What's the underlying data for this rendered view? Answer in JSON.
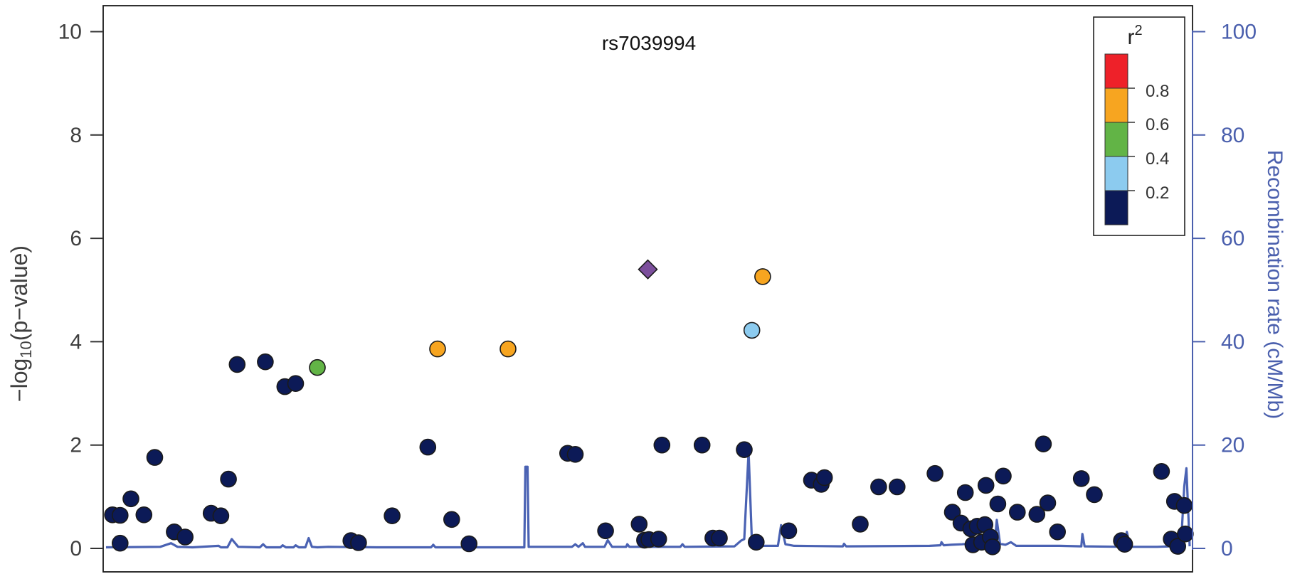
{
  "chart_data": {
    "type": "scatter",
    "title": "rs7039994",
    "ylabel_left": "−log10(p−value)",
    "ylabel_left_main": "−log",
    "ylabel_left_sub": "10",
    "ylabel_left_rest": "(p−value)",
    "ylabel_right": "Recombination rate (cM/Mb)",
    "ylim_left": [
      0,
      10.3
    ],
    "ylim_right": [
      0,
      103
    ],
    "ticks_left": [
      0,
      2,
      4,
      6,
      8,
      10
    ],
    "ticks_right": [
      0,
      20,
      40,
      60,
      80,
      100
    ],
    "xlim": [
      0,
      100
    ],
    "legend": {
      "title": "r",
      "title_sup": "2",
      "placement": "top-right",
      "bins": [
        {
          "color": "#ee2129"
        },
        {
          "color": "#f7a520"
        },
        {
          "color": "#62b446"
        },
        {
          "color": "#8ccbef"
        },
        {
          "color": "#0c1a57"
        }
      ],
      "labels": [
        "0.8",
        "0.6",
        "0.4",
        "0.2"
      ]
    },
    "lead_snp": {
      "x": 50.0,
      "y": 5.4,
      "color": "#7c4f9c"
    },
    "points": [
      {
        "x": 0.6,
        "y": 0.65,
        "c": "#0c1a57"
      },
      {
        "x": 1.3,
        "y": 0.64,
        "c": "#0c1a57"
      },
      {
        "x": 1.3,
        "y": 0.1,
        "c": "#0c1a57"
      },
      {
        "x": 2.3,
        "y": 0.96,
        "c": "#0c1a57"
      },
      {
        "x": 3.5,
        "y": 0.65,
        "c": "#0c1a57"
      },
      {
        "x": 4.5,
        "y": 1.76,
        "c": "#0c1a57"
      },
      {
        "x": 6.3,
        "y": 0.32,
        "c": "#0c1a57"
      },
      {
        "x": 7.3,
        "y": 0.22,
        "c": "#0c1a57"
      },
      {
        "x": 9.7,
        "y": 0.68,
        "c": "#0c1a57"
      },
      {
        "x": 10.6,
        "y": 0.63,
        "c": "#0c1a57"
      },
      {
        "x": 11.3,
        "y": 1.34,
        "c": "#0c1a57"
      },
      {
        "x": 12.1,
        "y": 3.56,
        "c": "#0c1a57"
      },
      {
        "x": 14.7,
        "y": 3.61,
        "c": "#0c1a57"
      },
      {
        "x": 16.5,
        "y": 3.13,
        "c": "#0c1a57"
      },
      {
        "x": 17.5,
        "y": 3.19,
        "c": "#0c1a57"
      },
      {
        "x": 19.5,
        "y": 3.5,
        "c": "#62b446"
      },
      {
        "x": 22.6,
        "y": 0.15,
        "c": "#0c1a57"
      },
      {
        "x": 23.3,
        "y": 0.11,
        "c": "#0c1a57"
      },
      {
        "x": 26.4,
        "y": 0.63,
        "c": "#0c1a57"
      },
      {
        "x": 29.7,
        "y": 1.96,
        "c": "#0c1a57"
      },
      {
        "x": 30.6,
        "y": 3.86,
        "c": "#f7a520"
      },
      {
        "x": 31.9,
        "y": 0.56,
        "c": "#0c1a57"
      },
      {
        "x": 33.5,
        "y": 0.09,
        "c": "#0c1a57"
      },
      {
        "x": 37.1,
        "y": 3.86,
        "c": "#f7a520"
      },
      {
        "x": 42.6,
        "y": 1.84,
        "c": "#0c1a57"
      },
      {
        "x": 43.3,
        "y": 1.82,
        "c": "#0c1a57"
      },
      {
        "x": 46.1,
        "y": 0.34,
        "c": "#0c1a57"
      },
      {
        "x": 49.2,
        "y": 0.47,
        "c": "#0c1a57"
      },
      {
        "x": 49.7,
        "y": 0.16,
        "c": "#0c1a57"
      },
      {
        "x": 50.1,
        "y": 0.17,
        "c": "#0c1a57"
      },
      {
        "x": 51.0,
        "y": 0.18,
        "c": "#0c1a57"
      },
      {
        "x": 51.3,
        "y": 2.0,
        "c": "#0c1a57"
      },
      {
        "x": 55.0,
        "y": 2.0,
        "c": "#0c1a57"
      },
      {
        "x": 56.0,
        "y": 0.2,
        "c": "#0c1a57"
      },
      {
        "x": 56.6,
        "y": 0.2,
        "c": "#0c1a57"
      },
      {
        "x": 58.9,
        "y": 1.91,
        "c": "#0c1a57"
      },
      {
        "x": 59.6,
        "y": 4.22,
        "c": "#8ccbef"
      },
      {
        "x": 60.0,
        "y": 0.12,
        "c": "#0c1a57"
      },
      {
        "x": 60.6,
        "y": 5.26,
        "c": "#f7a520"
      },
      {
        "x": 63.0,
        "y": 0.34,
        "c": "#0c1a57"
      },
      {
        "x": 65.1,
        "y": 1.32,
        "c": "#0c1a57"
      },
      {
        "x": 66.0,
        "y": 1.24,
        "c": "#0c1a57"
      },
      {
        "x": 66.3,
        "y": 1.37,
        "c": "#0c1a57"
      },
      {
        "x": 69.6,
        "y": 0.47,
        "c": "#0c1a57"
      },
      {
        "x": 71.3,
        "y": 1.19,
        "c": "#0c1a57"
      },
      {
        "x": 73.0,
        "y": 1.19,
        "c": "#0c1a57"
      },
      {
        "x": 76.5,
        "y": 1.45,
        "c": "#0c1a57"
      },
      {
        "x": 78.1,
        "y": 0.7,
        "c": "#0c1a57"
      },
      {
        "x": 78.9,
        "y": 0.49,
        "c": "#0c1a57"
      },
      {
        "x": 79.3,
        "y": 1.08,
        "c": "#0c1a57"
      },
      {
        "x": 79.8,
        "y": 0.38,
        "c": "#0c1a57"
      },
      {
        "x": 80.0,
        "y": 0.07,
        "c": "#0c1a57"
      },
      {
        "x": 80.4,
        "y": 0.43,
        "c": "#0c1a57"
      },
      {
        "x": 80.8,
        "y": 0.12,
        "c": "#0c1a57"
      },
      {
        "x": 81.1,
        "y": 0.46,
        "c": "#0c1a57"
      },
      {
        "x": 81.2,
        "y": 1.22,
        "c": "#0c1a57"
      },
      {
        "x": 81.6,
        "y": 0.22,
        "c": "#0c1a57"
      },
      {
        "x": 81.8,
        "y": 0.03,
        "c": "#0c1a57"
      },
      {
        "x": 82.3,
        "y": 0.86,
        "c": "#0c1a57"
      },
      {
        "x": 82.8,
        "y": 1.4,
        "c": "#0c1a57"
      },
      {
        "x": 84.1,
        "y": 0.7,
        "c": "#0c1a57"
      },
      {
        "x": 85.9,
        "y": 0.66,
        "c": "#0c1a57"
      },
      {
        "x": 86.5,
        "y": 2.02,
        "c": "#0c1a57"
      },
      {
        "x": 86.9,
        "y": 0.88,
        "c": "#0c1a57"
      },
      {
        "x": 87.8,
        "y": 0.32,
        "c": "#0c1a57"
      },
      {
        "x": 90.0,
        "y": 1.35,
        "c": "#0c1a57"
      },
      {
        "x": 91.2,
        "y": 1.04,
        "c": "#0c1a57"
      },
      {
        "x": 93.7,
        "y": 0.15,
        "c": "#0c1a57"
      },
      {
        "x": 94.0,
        "y": 0.08,
        "c": "#0c1a57"
      },
      {
        "x": 97.4,
        "y": 1.49,
        "c": "#0c1a57"
      },
      {
        "x": 98.3,
        "y": 0.18,
        "c": "#0c1a57"
      },
      {
        "x": 98.6,
        "y": 0.91,
        "c": "#0c1a57"
      },
      {
        "x": 98.9,
        "y": 0.04,
        "c": "#0c1a57"
      },
      {
        "x": 99.5,
        "y": 0.83,
        "c": "#0c1a57"
      },
      {
        "x": 99.6,
        "y": 0.28,
        "c": "#0c1a57"
      }
    ],
    "recombination": {
      "color": "#4a62b3",
      "points": [
        [
          0,
          0.2
        ],
        [
          5,
          0.3
        ],
        [
          6,
          1.0
        ],
        [
          6.6,
          0.3
        ],
        [
          8,
          0.2
        ],
        [
          10.4,
          0.5
        ],
        [
          10.6,
          0.2
        ],
        [
          11.2,
          0.2
        ],
        [
          11.6,
          1.8
        ],
        [
          12.2,
          0.3
        ],
        [
          14.2,
          0.2
        ],
        [
          14.5,
          0.8
        ],
        [
          14.8,
          0.2
        ],
        [
          16.1,
          0.2
        ],
        [
          16.3,
          0.6
        ],
        [
          16.6,
          0.2
        ],
        [
          17.3,
          0.2
        ],
        [
          17.5,
          0.6
        ],
        [
          17.8,
          0.2
        ],
        [
          18.4,
          0.2
        ],
        [
          18.7,
          2.0
        ],
        [
          19.0,
          0.3
        ],
        [
          19.5,
          0.2
        ],
        [
          20.5,
          0.3
        ],
        [
          25.0,
          0.2
        ],
        [
          30.0,
          0.2
        ],
        [
          30.2,
          0.7
        ],
        [
          30.4,
          0.2
        ],
        [
          38.6,
          0.2
        ],
        [
          38.7,
          15.8
        ],
        [
          38.9,
          15.8
        ],
        [
          39.0,
          0.3
        ],
        [
          43.0,
          0.3
        ],
        [
          43.3,
          0.8
        ],
        [
          43.6,
          0.3
        ],
        [
          44.0,
          1.0
        ],
        [
          44.2,
          0.3
        ],
        [
          46.0,
          0.3
        ],
        [
          46.3,
          1.6
        ],
        [
          46.7,
          0.3
        ],
        [
          48.0,
          0.3
        ],
        [
          48.1,
          0.8
        ],
        [
          48.3,
          0.3
        ],
        [
          51.0,
          0.3
        ],
        [
          53.0,
          0.3
        ],
        [
          53.2,
          0.8
        ],
        [
          53.4,
          0.3
        ],
        [
          58.0,
          0.4
        ],
        [
          58.6,
          1.5
        ],
        [
          58.9,
          1.8
        ],
        [
          59.3,
          18.7
        ],
        [
          59.6,
          1.5
        ],
        [
          60.0,
          0.5
        ],
        [
          62.0,
          0.5
        ],
        [
          62.3,
          4.5
        ],
        [
          62.7,
          0.8
        ],
        [
          63.5,
          0.5
        ],
        [
          68.0,
          0.4
        ],
        [
          68.1,
          0.9
        ],
        [
          68.3,
          0.4
        ],
        [
          76.0,
          0.5
        ],
        [
          77.0,
          0.6
        ],
        [
          77.1,
          1.2
        ],
        [
          77.3,
          0.6
        ],
        [
          78.0,
          0.7
        ],
        [
          79.0,
          0.8
        ],
        [
          80.0,
          1.0
        ],
        [
          80.5,
          0.6
        ],
        [
          81.0,
          1.3
        ],
        [
          81.5,
          0.8
        ],
        [
          82.0,
          1.0
        ],
        [
          82.2,
          5.5
        ],
        [
          82.5,
          0.9
        ],
        [
          83.0,
          0.7
        ],
        [
          83.5,
          1.2
        ],
        [
          84.0,
          0.5
        ],
        [
          88.0,
          0.5
        ],
        [
          90.0,
          0.4
        ],
        [
          90.1,
          2.8
        ],
        [
          90.3,
          0.4
        ],
        [
          94.0,
          0.3
        ],
        [
          94.2,
          3.2
        ],
        [
          94.5,
          0.3
        ],
        [
          97.0,
          0.3
        ],
        [
          98.2,
          0.4
        ],
        [
          99.2,
          0.6
        ],
        [
          99.5,
          12.0
        ],
        [
          99.7,
          15.5
        ],
        [
          100,
          0.4
        ]
      ]
    }
  }
}
